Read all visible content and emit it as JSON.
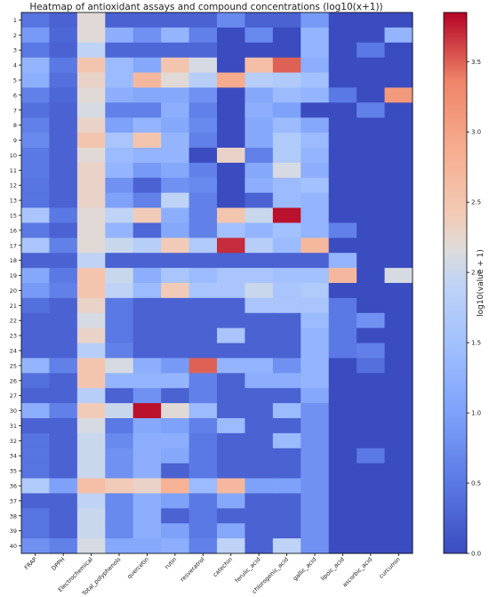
{
  "chart_data": {
    "type": "heatmap",
    "title": "Heatmap of antioxidant assays and compound concentrations (log10(x+1))",
    "xlabel": "",
    "ylabel": "",
    "x_categories": [
      "FRAP",
      "DPPH",
      "Electrochemical",
      "Total_polyphenols",
      "quercetin",
      "rutin",
      "resveratrol",
      "catechin",
      "ferulic_acid",
      "chlorogenic_acid",
      "gallic_acid",
      "lipoic_acid",
      "ascorbic_acid",
      "curcumin"
    ],
    "y_categories": [
      "1",
      "2",
      "3",
      "4",
      "5",
      "6",
      "7",
      "8",
      "9",
      "10",
      "11",
      "12",
      "13",
      "15",
      "16",
      "17",
      "18",
      "19",
      "20",
      "21",
      "22",
      "23",
      "24",
      "25",
      "26",
      "27",
      "30",
      "31",
      "32",
      "34",
      "35",
      "36",
      "37",
      "38",
      "39",
      "40"
    ],
    "values": [
      [
        0.45,
        0.25,
        2.2,
        0.25,
        0.25,
        0.25,
        0.25,
        0.7,
        0.25,
        0.25,
        0.9,
        0.0,
        0.0,
        0.0
      ],
      [
        0.9,
        0.3,
        2.2,
        1.2,
        0.8,
        1.3,
        0.6,
        0.0,
        0.7,
        0.0,
        1.3,
        0.0,
        0.0,
        1.3
      ],
      [
        0.5,
        0.25,
        1.9,
        0.3,
        0.3,
        0.3,
        0.3,
        0.0,
        0.0,
        0.0,
        1.3,
        0.0,
        0.5,
        0.0
      ],
      [
        1.3,
        0.5,
        2.5,
        1.4,
        1.1,
        2.5,
        2.1,
        0.0,
        2.6,
        3.5,
        1.2,
        0.0,
        0.0,
        0.0
      ],
      [
        1.2,
        0.4,
        2.3,
        1.4,
        2.7,
        2.2,
        1.8,
        2.9,
        1.8,
        1.7,
        1.5,
        0.0,
        0.0,
        0.0
      ],
      [
        0.6,
        0.3,
        2.2,
        1.2,
        1.1,
        1.1,
        0.8,
        0.0,
        1.1,
        1.4,
        1.3,
        0.5,
        0.0,
        3.1
      ],
      [
        0.4,
        0.25,
        2.1,
        0.6,
        0.6,
        1.2,
        0.6,
        0.0,
        1.2,
        1.0,
        0.0,
        0.0,
        0.6,
        0.0
      ],
      [
        0.6,
        0.25,
        2.3,
        1.0,
        1.3,
        1.1,
        0.7,
        0.0,
        1.1,
        1.4,
        1.1,
        0.0,
        0.0,
        0.0
      ],
      [
        0.7,
        0.25,
        2.5,
        1.6,
        2.5,
        1.3,
        0.6,
        0.0,
        1.1,
        1.7,
        1.4,
        0.0,
        0.0,
        0.0
      ],
      [
        0.5,
        0.25,
        2.2,
        1.4,
        1.3,
        1.3,
        0.0,
        2.3,
        0.6,
        1.7,
        1.3,
        0.0,
        0.0,
        0.0
      ],
      [
        0.5,
        0.25,
        2.3,
        1.3,
        0.9,
        1.1,
        0.6,
        0.0,
        1.1,
        2.1,
        1.2,
        0.0,
        0.0,
        0.0
      ],
      [
        0.45,
        0.25,
        2.3,
        0.8,
        0.25,
        0.8,
        0.7,
        0.0,
        1.2,
        1.4,
        1.5,
        0.0,
        0.0,
        0.0
      ],
      [
        0.45,
        0.25,
        2.3,
        1.0,
        0.6,
        1.9,
        0.6,
        0.0,
        0.25,
        1.4,
        1.3,
        0.0,
        0.0,
        0.0
      ],
      [
        1.6,
        0.5,
        2.2,
        1.9,
        2.4,
        1.2,
        0.6,
        2.5,
        2.0,
        3.8,
        1.3,
        0.0,
        0.0,
        0.0
      ],
      [
        0.5,
        0.25,
        2.2,
        1.3,
        0.3,
        1.1,
        0.6,
        1.5,
        1.3,
        1.5,
        1.3,
        0.6,
        0.0,
        0.0
      ],
      [
        1.6,
        0.6,
        2.2,
        2.0,
        1.8,
        2.4,
        1.7,
        3.7,
        1.8,
        1.4,
        2.7,
        0.0,
        0.0,
        0.0
      ],
      [
        0.25,
        0.25,
        1.9,
        0.25,
        0.25,
        0.25,
        0.25,
        0.25,
        0.25,
        0.25,
        0.25,
        1.3,
        0.0,
        0.0
      ],
      [
        1.1,
        0.5,
        2.5,
        2.0,
        1.2,
        1.6,
        1.4,
        1.6,
        1.6,
        1.5,
        1.5,
        2.7,
        0.0,
        2.1
      ],
      [
        0.9,
        0.6,
        2.5,
        1.9,
        1.4,
        2.4,
        1.6,
        1.6,
        2.0,
        1.6,
        1.7,
        0.0,
        0.0,
        0.0
      ],
      [
        0.4,
        0.25,
        2.3,
        0.5,
        0.25,
        0.25,
        0.25,
        0.25,
        1.6,
        1.6,
        1.6,
        0.5,
        0.0,
        0.0
      ],
      [
        0.25,
        0.25,
        2.1,
        0.5,
        0.25,
        0.25,
        0.25,
        0.25,
        0.25,
        0.25,
        1.4,
        0.5,
        0.8,
        0.0
      ],
      [
        0.25,
        0.25,
        2.3,
        0.5,
        0.25,
        0.25,
        0.25,
        1.6,
        0.25,
        0.25,
        1.3,
        0.5,
        0.0,
        0.0
      ],
      [
        0.25,
        0.25,
        1.8,
        0.6,
        0.25,
        0.25,
        0.25,
        0.25,
        0.25,
        0.25,
        1.3,
        0.5,
        0.6,
        0.0
      ],
      [
        1.3,
        0.6,
        2.5,
        2.1,
        1.2,
        0.9,
        3.5,
        1.3,
        1.3,
        0.8,
        1.3,
        0.0,
        0.4,
        0.0
      ],
      [
        0.4,
        0.25,
        2.5,
        1.3,
        1.3,
        1.3,
        0.6,
        0.25,
        1.2,
        1.2,
        1.3,
        0.0,
        0.0,
        0.0
      ],
      [
        0.25,
        0.25,
        1.8,
        0.25,
        0.8,
        0.25,
        0.6,
        0.25,
        0.25,
        0.25,
        1.1,
        0.0,
        0.0,
        0.0
      ],
      [
        1.2,
        0.6,
        2.4,
        2.0,
        3.8,
        2.2,
        1.4,
        0.25,
        0.25,
        1.4,
        0.8,
        0.0,
        0.0,
        0.0
      ],
      [
        0.25,
        0.25,
        2.1,
        0.5,
        1.1,
        1.0,
        0.6,
        1.4,
        0.25,
        0.25,
        0.8,
        0.0,
        0.0,
        0.0
      ],
      [
        0.45,
        0.25,
        2.0,
        0.7,
        1.2,
        1.2,
        0.5,
        0.25,
        0.25,
        1.4,
        0.8,
        0.0,
        0.0,
        0.0
      ],
      [
        0.45,
        0.25,
        2.0,
        0.8,
        1.2,
        1.1,
        0.5,
        0.25,
        0.25,
        0.25,
        0.8,
        0.0,
        0.5,
        0.0
      ],
      [
        0.45,
        0.25,
        2.0,
        0.8,
        1.2,
        0.25,
        0.5,
        0.25,
        0.25,
        0.25,
        0.8,
        0.0,
        0.0,
        0.0
      ],
      [
        1.7,
        1.0,
        2.6,
        2.4,
        2.3,
        2.8,
        1.4,
        2.7,
        1.0,
        1.0,
        0.8,
        0.0,
        0.0,
        0.0
      ],
      [
        0.25,
        0.25,
        1.9,
        0.7,
        1.2,
        1.0,
        0.5,
        1.1,
        0.25,
        0.25,
        0.8,
        0.0,
        0.0,
        0.0
      ],
      [
        0.45,
        0.25,
        2.0,
        0.7,
        1.2,
        0.25,
        0.5,
        0.25,
        0.25,
        0.25,
        0.8,
        0.0,
        0.0,
        0.0
      ],
      [
        0.45,
        0.25,
        2.0,
        0.7,
        1.2,
        1.0,
        0.5,
        1.1,
        0.25,
        0.25,
        0.8,
        0.0,
        0.0,
        0.0
      ],
      [
        0.8,
        0.6,
        2.1,
        1.1,
        1.1,
        1.2,
        0.6,
        1.9,
        0.25,
        1.9,
        0.8,
        0.0,
        0.0,
        0.0
      ]
    ],
    "colorbar": {
      "label": "log10(value + 1)",
      "range": [
        0.0,
        3.85
      ],
      "ticks": [
        "0.0",
        "0.5",
        "1.0",
        "1.5",
        "2.0",
        "2.5",
        "3.0",
        "3.5"
      ],
      "colormap": "coolwarm"
    }
  }
}
